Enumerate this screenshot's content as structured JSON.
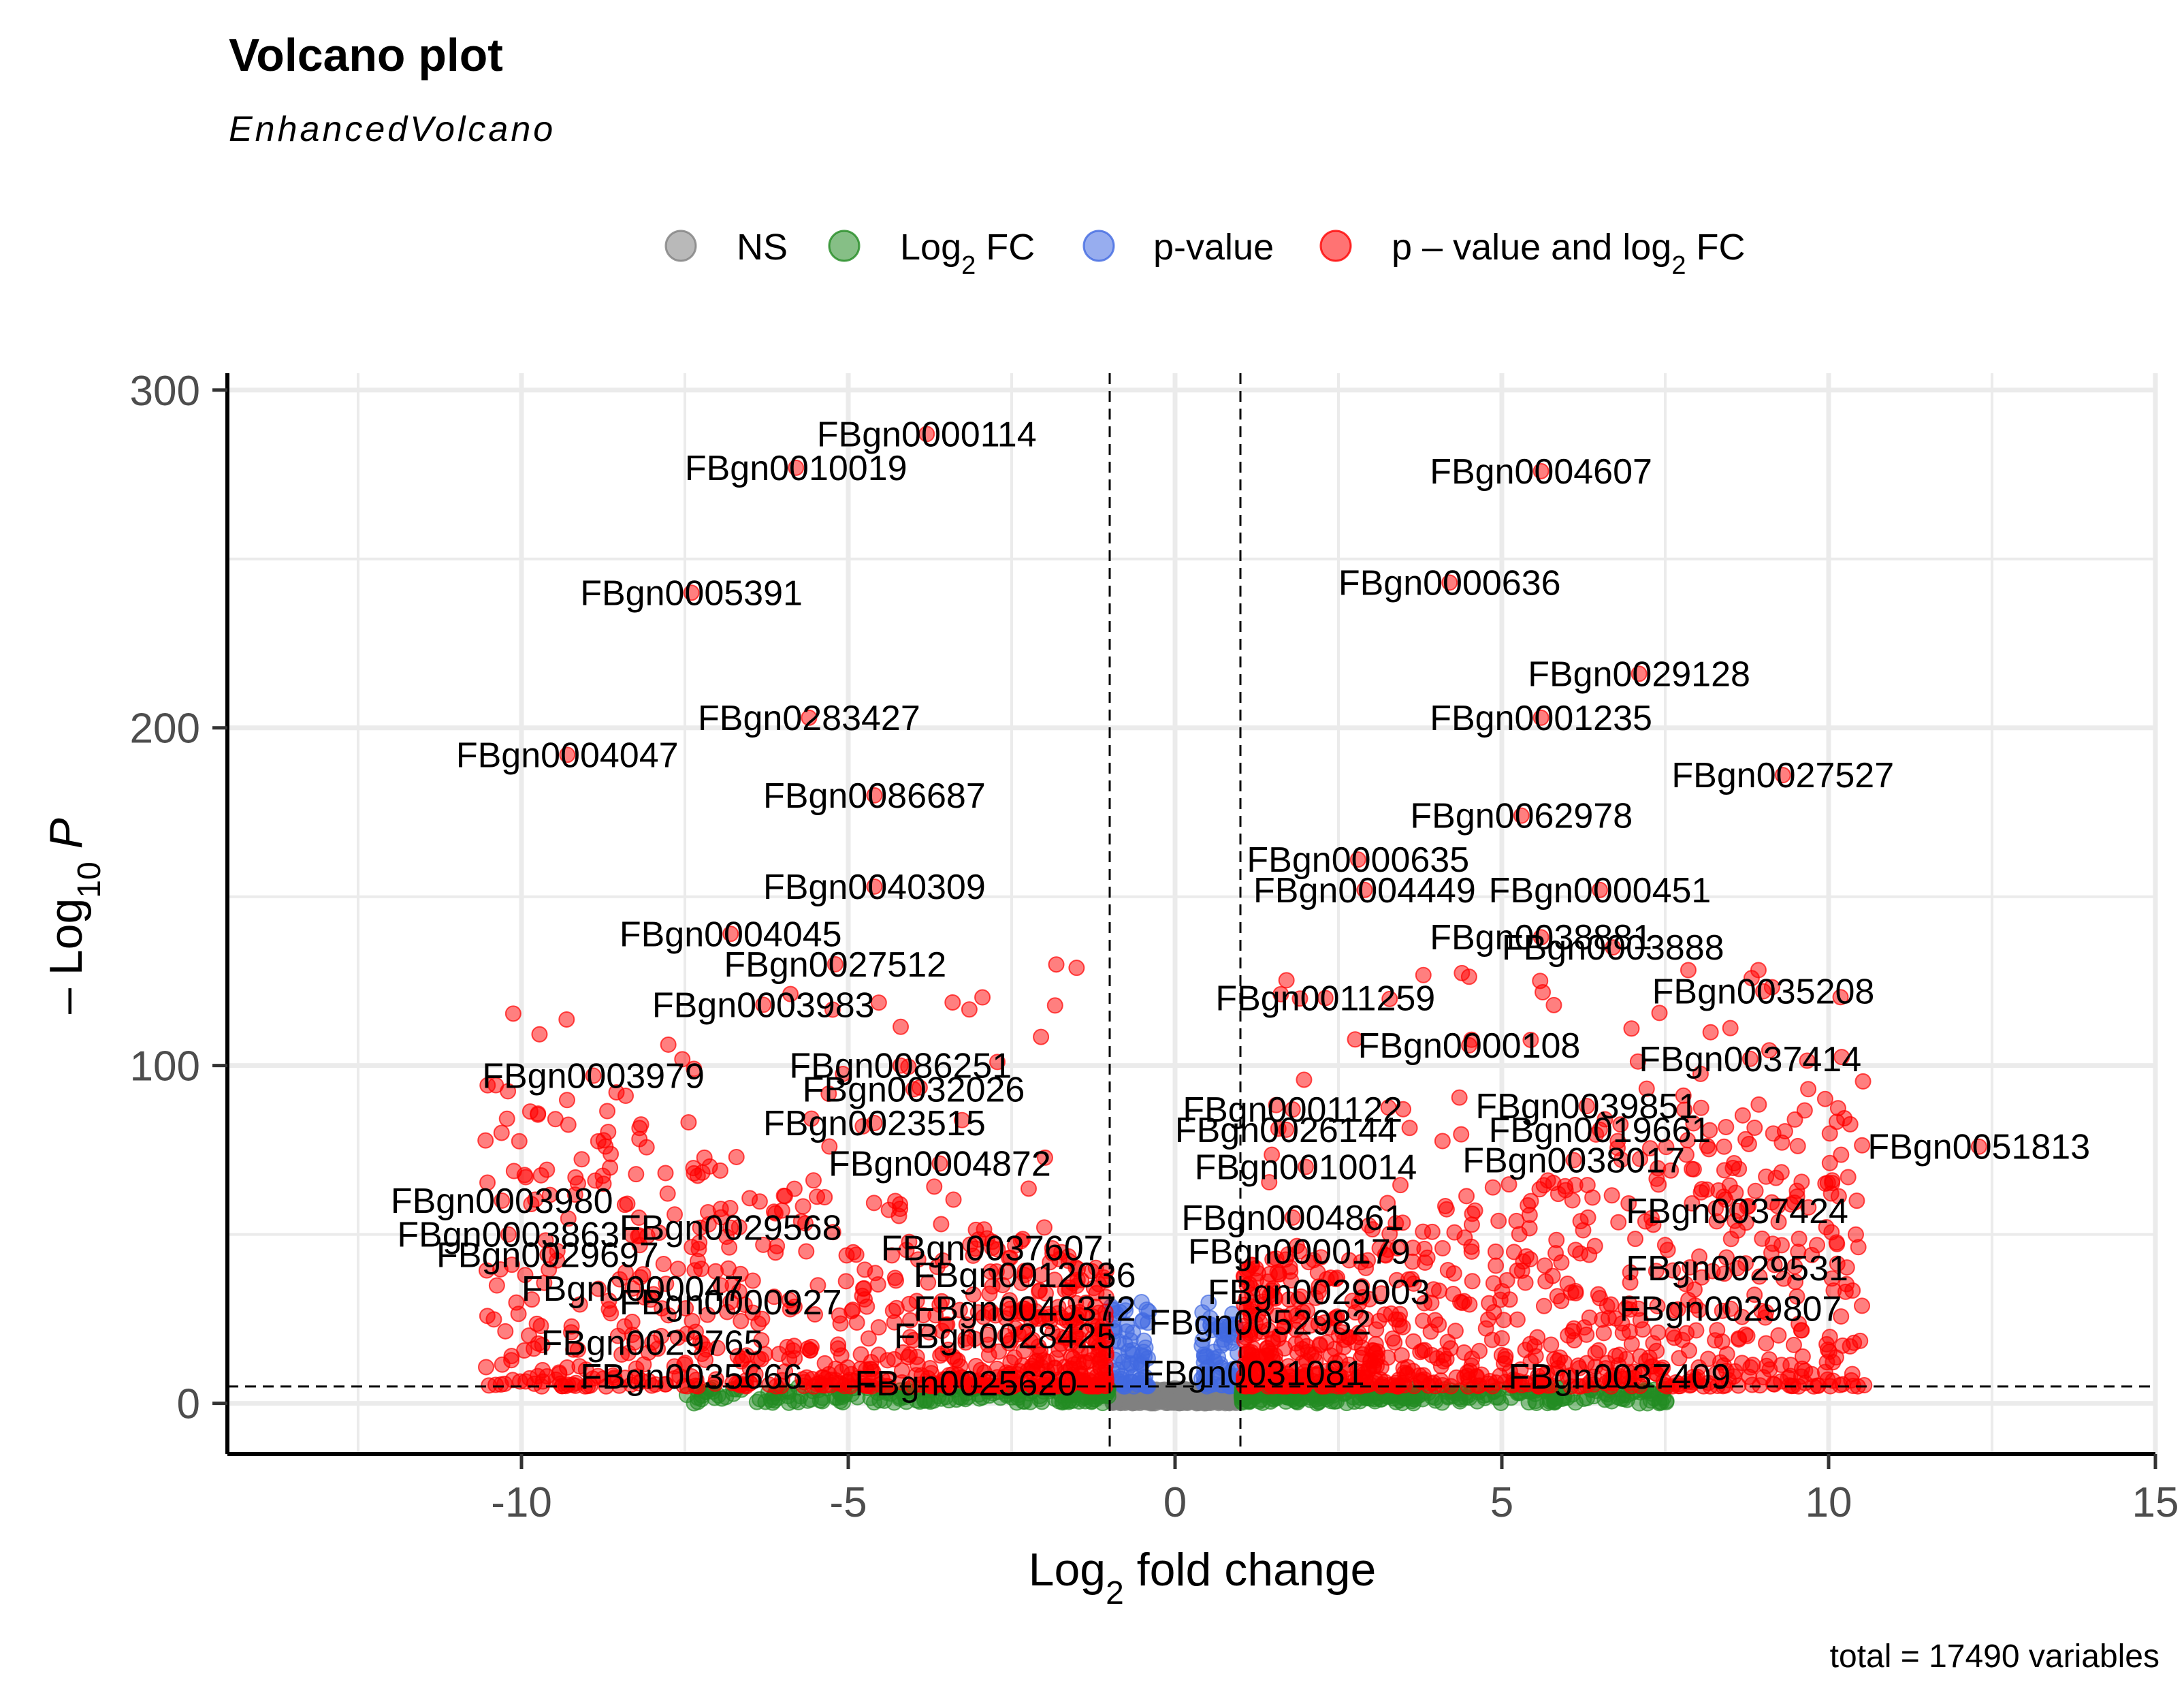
{
  "chart_data": {
    "type": "scatter",
    "title": "Volcano plot",
    "subtitle": "EnhancedVolcano",
    "caption": "total = 17490 variables",
    "xlabel": "Log2 fold change",
    "ylabel": "-Log10 P",
    "xlim": [
      -14.5,
      15
    ],
    "ylim": [
      -15,
      305
    ],
    "x_ticks": [
      -10,
      -5,
      0,
      5,
      10,
      15
    ],
    "y_ticks": [
      0,
      100,
      200,
      300
    ],
    "cutoffs": {
      "log2fc": [
        -1,
        1
      ],
      "neglog10p": 5
    },
    "grid": true,
    "legend_position": "top",
    "legend": [
      {
        "key": "NS",
        "label": "NS",
        "color": "#808080"
      },
      {
        "key": "FC",
        "label": "Log2 FC",
        "color": "#228B22"
      },
      {
        "key": "P",
        "label": "p-value",
        "color": "#4169E1"
      },
      {
        "key": "FC_P",
        "label": "p – value and log2 FC",
        "color": "#FF0000"
      }
    ],
    "labeled_points": [
      {
        "label": "FBgn0000114",
        "x": -3.8,
        "y": 287
      },
      {
        "label": "FBgn0010019",
        "x": -5.8,
        "y": 277
      },
      {
        "label": "FBgn0004607",
        "x": 5.6,
        "y": 276
      },
      {
        "label": "FBgn0005391",
        "x": -7.4,
        "y": 240
      },
      {
        "label": "FBgn0000636",
        "x": 4.2,
        "y": 243
      },
      {
        "label": "FBgn0029128",
        "x": 7.1,
        "y": 216
      },
      {
        "label": "FBgn0283427",
        "x": -5.6,
        "y": 203
      },
      {
        "label": "FBgn0001235",
        "x": 5.6,
        "y": 203
      },
      {
        "label": "FBgn0004047",
        "x": -9.3,
        "y": 192
      },
      {
        "label": "FBgn0027527",
        "x": 9.3,
        "y": 186
      },
      {
        "label": "FBgn0062978",
        "x": 5.3,
        "y": 174
      },
      {
        "label": "FBgn0086687",
        "x": -4.6,
        "y": 180
      },
      {
        "label": "FBgn0000635",
        "x": 2.8,
        "y": 161
      },
      {
        "label": "FBgn0000451",
        "x": 6.5,
        "y": 152
      },
      {
        "label": "FBgn0040309",
        "x": -4.6,
        "y": 153
      },
      {
        "label": "FBgn0004449",
        "x": 2.9,
        "y": 152
      },
      {
        "label": "FBgn0004045",
        "x": -6.8,
        "y": 139
      },
      {
        "label": "FBgn0038881",
        "x": 5.6,
        "y": 138
      },
      {
        "label": "FBgn0003888",
        "x": 6.7,
        "y": 135
      },
      {
        "label": "FBgn0003983",
        "x": -6.3,
        "y": 118
      },
      {
        "label": "FBgn0027512",
        "x": -5.2,
        "y": 130
      },
      {
        "label": "FBgn0011259",
        "x": 2.3,
        "y": 120
      },
      {
        "label": "FBgn0035208",
        "x": 9.0,
        "y": 122
      },
      {
        "label": "FBgn0037414",
        "x": 8.8,
        "y": 102
      },
      {
        "label": "FBgn0000108",
        "x": 4.5,
        "y": 106
      },
      {
        "label": "FBgn0086251",
        "x": -4.2,
        "y": 100
      },
      {
        "label": "FBgn0003979",
        "x": -8.9,
        "y": 97
      },
      {
        "label": "FBgn0032026",
        "x": -4.0,
        "y": 93
      },
      {
        "label": "FBgn0039851",
        "x": 6.3,
        "y": 88
      },
      {
        "label": "FBgn0001122",
        "x": 1.8,
        "y": 87
      },
      {
        "label": "FBgn0026144",
        "x": 1.7,
        "y": 81
      },
      {
        "label": "FBgn0019661",
        "x": 6.5,
        "y": 81
      },
      {
        "label": "FBgn0023515",
        "x": -4.6,
        "y": 83
      },
      {
        "label": "FBgn0051813",
        "x": 12.3,
        "y": 76
      },
      {
        "label": "FBgn0038017",
        "x": 6.1,
        "y": 72
      },
      {
        "label": "FBgn0010014",
        "x": 2.0,
        "y": 70
      },
      {
        "label": "FBgn0004872",
        "x": -3.6,
        "y": 71
      },
      {
        "label": "FBgn0003980",
        "x": -10.3,
        "y": 60
      },
      {
        "label": "FBgn0004861",
        "x": 1.8,
        "y": 55
      },
      {
        "label": "FBgn0037424",
        "x": 8.6,
        "y": 57
      },
      {
        "label": "FBgn0003863",
        "x": -10.2,
        "y": 50
      },
      {
        "label": "FBgn0029568",
        "x": -6.8,
        "y": 52
      },
      {
        "label": "FBgn0037607",
        "x": -2.8,
        "y": 46
      },
      {
        "label": "FBgn0029531",
        "x": 8.6,
        "y": 40
      },
      {
        "label": "FBgn0000179",
        "x": 1.9,
        "y": 45
      },
      {
        "label": "FBgn0029697",
        "x": -9.6,
        "y": 44
      },
      {
        "label": "FBgn0012036",
        "x": -2.3,
        "y": 38
      },
      {
        "label": "FBgn0000047",
        "x": -8.3,
        "y": 34
      },
      {
        "label": "FBgn0029003",
        "x": 2.2,
        "y": 33
      },
      {
        "label": "FBgn0000927",
        "x": -6.8,
        "y": 30
      },
      {
        "label": "FBgn0040372",
        "x": -2.3,
        "y": 28
      },
      {
        "label": "FBgn0029807",
        "x": 8.5,
        "y": 28
      },
      {
        "label": "FBgn0052982",
        "x": 1.3,
        "y": 24
      },
      {
        "label": "FBgn0029765",
        "x": -8.0,
        "y": 18
      },
      {
        "label": "FBgn0028425",
        "x": -2.6,
        "y": 20
      },
      {
        "label": "FBgn0035666",
        "x": -7.4,
        "y": 8
      },
      {
        "label": "FBgn0025620",
        "x": -3.2,
        "y": 6
      },
      {
        "label": "FBgn0031081",
        "x": 1.2,
        "y": 9
      },
      {
        "label": "FBgn0037409",
        "x": 6.8,
        "y": 8
      }
    ]
  }
}
